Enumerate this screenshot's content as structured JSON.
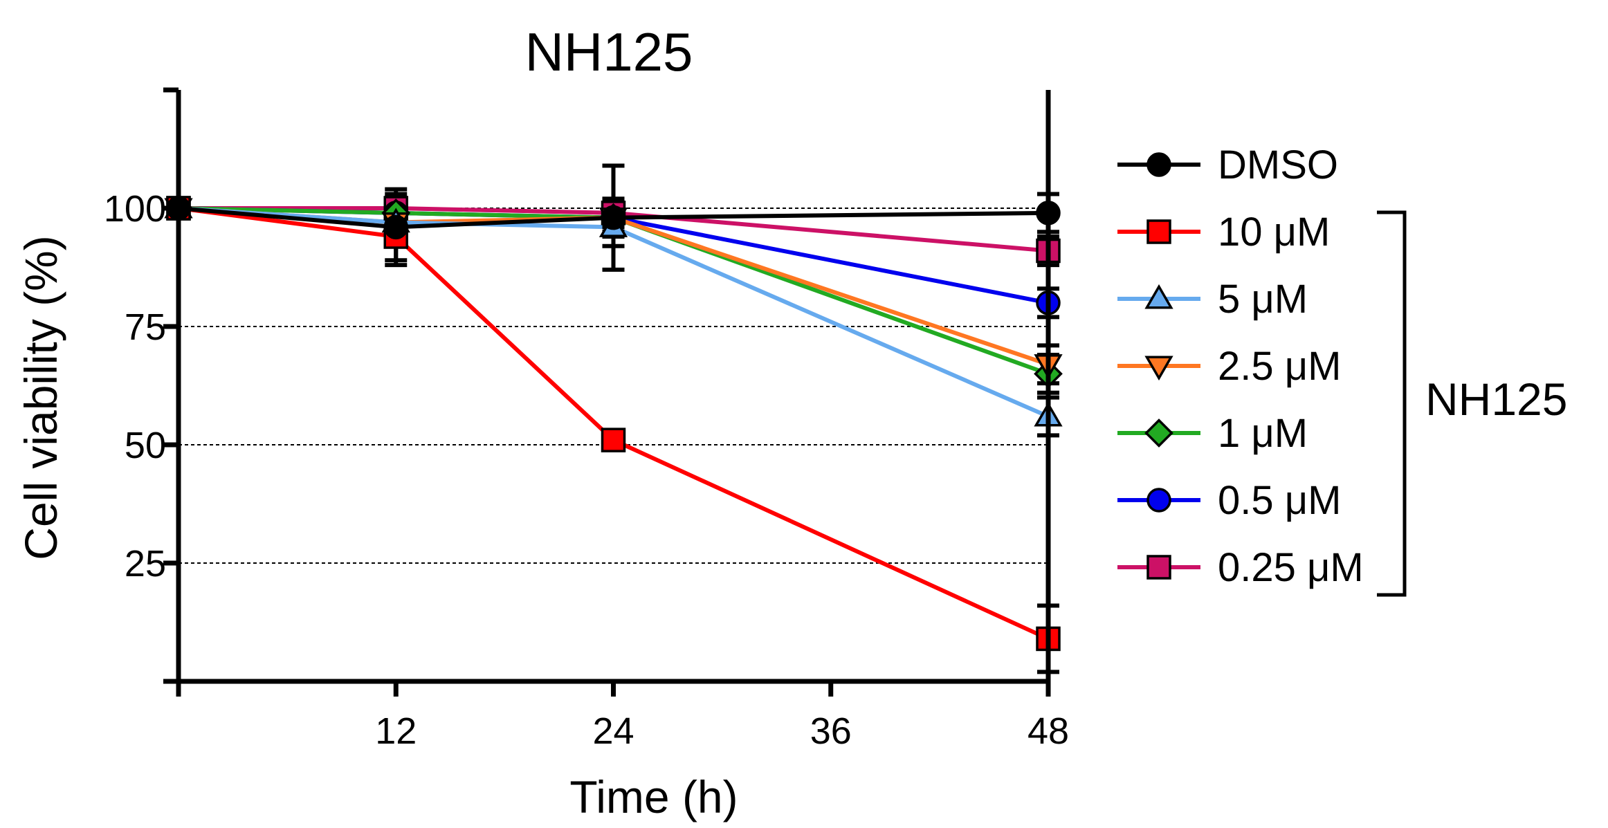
{
  "chart_data": {
    "type": "line",
    "title": "NH125",
    "xlabel": "Time (h)",
    "ylabel": "Cell viability (%)",
    "x": [
      0,
      12,
      24,
      48
    ],
    "xlim": [
      0,
      48
    ],
    "ylim": [
      0,
      125
    ],
    "x_ticks": [
      12,
      24,
      36,
      48
    ],
    "x_tick_labels": [
      "12",
      "24",
      "36",
      "48"
    ],
    "y_ticks": [
      25,
      50,
      75,
      100
    ],
    "y_tick_labels": [
      "25",
      "50",
      "75",
      "100"
    ],
    "gridlines_y": [
      25,
      50,
      75,
      100
    ],
    "legend_position": "right",
    "legend_group_label": "NH125",
    "series": [
      {
        "name": "DMSO",
        "values": [
          100,
          96,
          98,
          99
        ],
        "errors": [
          0,
          8,
          11,
          4
        ],
        "color": "#000000",
        "marker": "circle",
        "fill": "#000000",
        "group": false
      },
      {
        "name": "10 μM",
        "values": [
          100,
          94,
          51,
          9
        ],
        "errors": [
          0,
          5,
          0,
          7
        ],
        "color": "#ff0000",
        "marker": "square",
        "fill": "#ff0000",
        "group": true
      },
      {
        "name": "5 μM",
        "values": [
          100,
          97,
          96,
          56
        ],
        "errors": [
          0,
          4,
          4,
          4
        ],
        "color": "#66aaee",
        "marker": "triangle-up",
        "fill": "#66aaee",
        "group": true
      },
      {
        "name": "2.5 μM",
        "values": [
          100,
          97,
          98,
          67
        ],
        "errors": [
          0,
          4,
          4,
          4
        ],
        "color": "#ff7722",
        "marker": "triangle-down",
        "fill": "#ff7722",
        "group": true
      },
      {
        "name": "1 μM",
        "values": [
          100,
          99,
          98,
          65
        ],
        "errors": [
          0,
          3,
          3,
          4
        ],
        "color": "#22aa22",
        "marker": "diamond",
        "fill": "#22aa22",
        "group": true
      },
      {
        "name": "0.5 μM",
        "values": [
          100,
          99,
          98,
          80
        ],
        "errors": [
          0,
          3,
          3,
          3
        ],
        "color": "#0000ee",
        "marker": "circle",
        "fill": "#0000ee",
        "group": true
      },
      {
        "name": "0.25 μM",
        "values": [
          100,
          100,
          99,
          91
        ],
        "errors": [
          0,
          3,
          3,
          3
        ],
        "color": "#cc1166",
        "marker": "square",
        "fill": "#cc1166",
        "group": true
      }
    ]
  }
}
